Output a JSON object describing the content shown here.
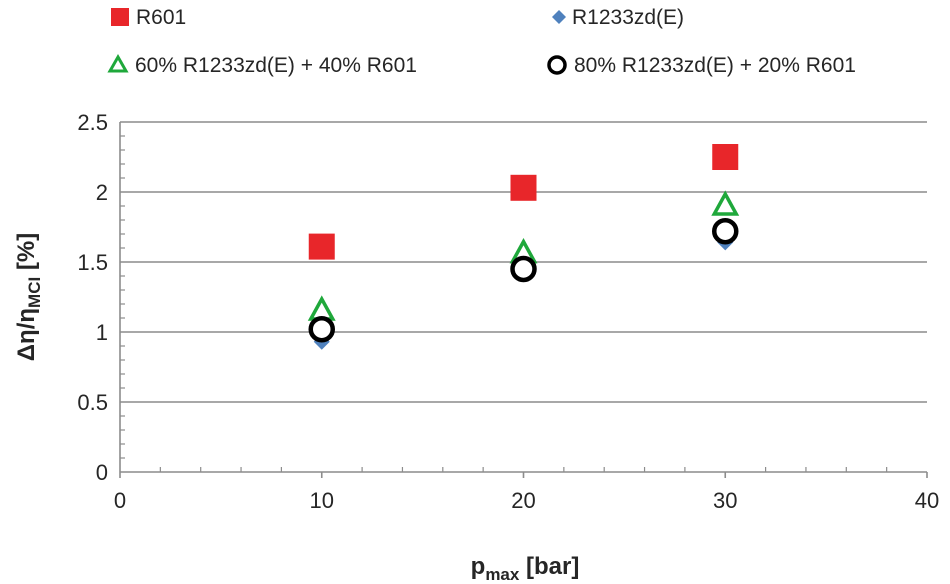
{
  "chart_data": {
    "type": "scatter",
    "xlabel_main": "p",
    "xlabel_sub": "max",
    "xlabel_unit": " [bar]",
    "ylabel_main": "Δη/η",
    "ylabel_sub": "MCI",
    "ylabel_unit": " [%]",
    "xlim": [
      0,
      40
    ],
    "ylim": [
      0,
      2.5
    ],
    "xticks": [
      "0",
      "10",
      "20",
      "30",
      "40"
    ],
    "yticks": [
      "0",
      "0.5",
      "1",
      "1.5",
      "2",
      "2.5"
    ],
    "grid": "horizontal",
    "legend_position": "top",
    "series": [
      {
        "name": "R601",
        "marker": "square",
        "color": "#e8262a",
        "x": [
          10,
          20,
          30
        ],
        "y": [
          1.61,
          2.03,
          2.25
        ]
      },
      {
        "name": "R1233zd(E)",
        "marker": "diamond",
        "color": "#4f81bd",
        "x": [
          10,
          20,
          30
        ],
        "y": [
          0.93,
          1.42,
          1.64
        ]
      },
      {
        "name": "60% R1233zd(E) + 40% R601",
        "marker": "triangle-open",
        "color": "#1fa83b",
        "x": [
          10,
          20,
          30
        ],
        "y": [
          1.15,
          1.56,
          1.9
        ]
      },
      {
        "name": "80% R1233zd(E) + 20% R601",
        "marker": "circle-open",
        "color": "#000000",
        "x": [
          10,
          20,
          30
        ],
        "y": [
          1.02,
          1.45,
          1.72
        ]
      }
    ]
  }
}
